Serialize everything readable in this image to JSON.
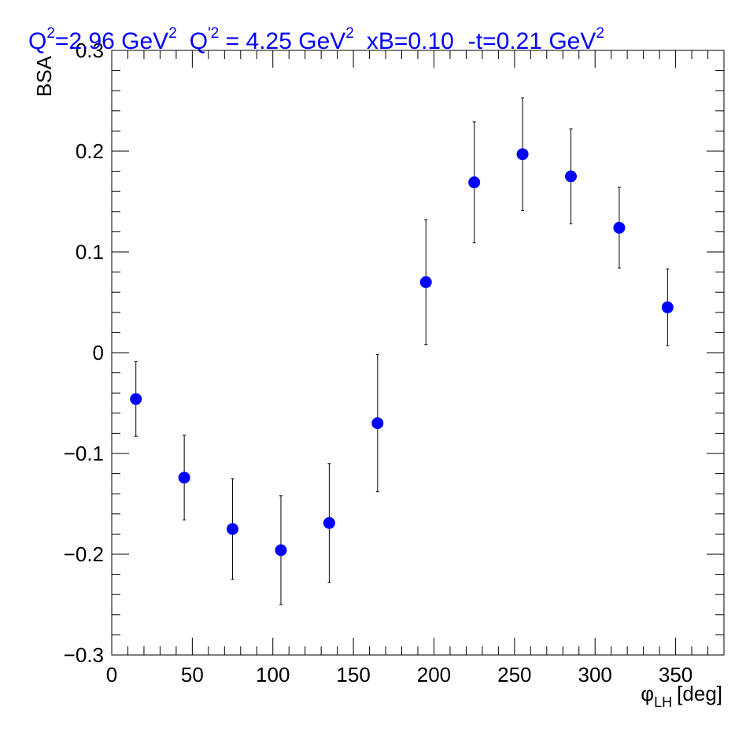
{
  "chart_data": {
    "type": "scatter",
    "title_parts": {
      "q2_base": "Q",
      "q2_sup": "2",
      "q2_value": "=2.96 GeV",
      "q2_unit_sup": "2",
      "qp2_base": "Q",
      "qp2_sup": "'2",
      "qp2_value": " = 4.25 GeV",
      "qp2_unit_sup": "2",
      "xb": "xB=0.10",
      "t_value": "-t=0.21 GeV",
      "t_unit_sup": "2"
    },
    "xlabel_symbol": "φ",
    "xlabel_sub": "LH",
    "xlabel_unit": "[deg]",
    "ylabel": "BSA",
    "xlim": [
      0,
      380
    ],
    "ylim": [
      -0.3,
      0.3
    ],
    "x_ticks": [
      "0",
      "50",
      "100",
      "150",
      "200",
      "250",
      "300",
      "350"
    ],
    "y_ticks": [
      "−0.3",
      "−0.2",
      "−0.1",
      "0",
      "0.1",
      "0.2",
      "0.3"
    ],
    "marker_color": "#0000ff",
    "error_bar_color": "#000000",
    "grid": false,
    "points": [
      {
        "x": 15,
        "y": -0.046,
        "err": 0.037
      },
      {
        "x": 45,
        "y": -0.124,
        "err": 0.042
      },
      {
        "x": 75,
        "y": -0.175,
        "err": 0.05
      },
      {
        "x": 105,
        "y": -0.196,
        "err": 0.054
      },
      {
        "x": 135,
        "y": -0.169,
        "err": 0.059
      },
      {
        "x": 165,
        "y": -0.07,
        "err": 0.068
      },
      {
        "x": 195,
        "y": 0.07,
        "err": 0.062
      },
      {
        "x": 225,
        "y": 0.169,
        "err": 0.06
      },
      {
        "x": 255,
        "y": 0.197,
        "err": 0.056
      },
      {
        "x": 285,
        "y": 0.175,
        "err": 0.047
      },
      {
        "x": 315,
        "y": 0.124,
        "err": 0.04
      },
      {
        "x": 345,
        "y": 0.045,
        "err": 0.038
      }
    ]
  }
}
